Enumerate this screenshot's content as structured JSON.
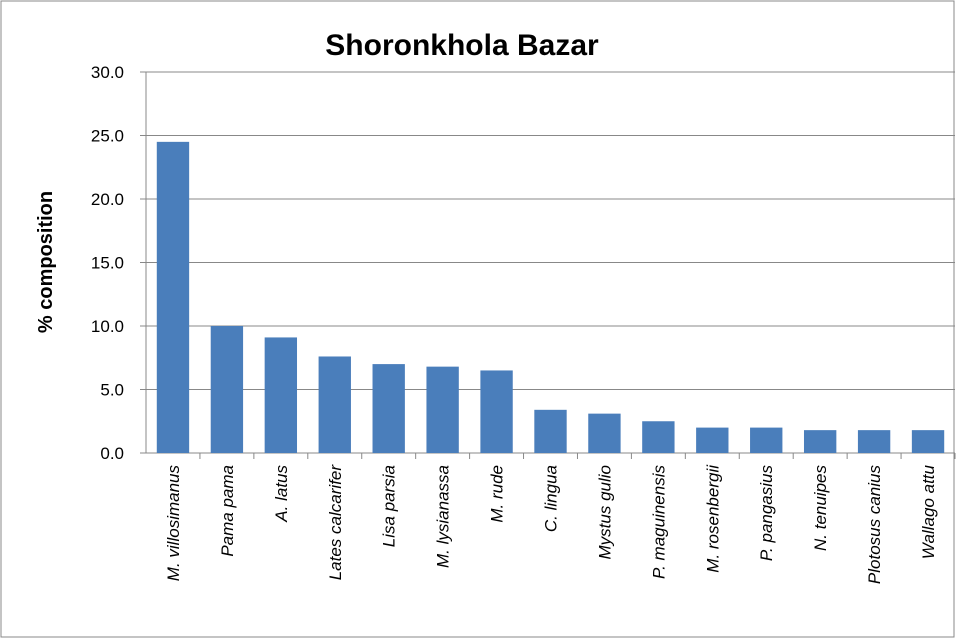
{
  "chart_data": {
    "type": "bar",
    "title": "Shoronkhola Bazar",
    "y_label": "% composition",
    "categories": [
      "M. villosimanus",
      "Pama pama",
      "A. latus",
      "Lates calcarifer",
      "Lisa parsia",
      "M. lysianassa",
      "M.  rude",
      "C. lingua",
      "Mystus gulio",
      "P. maguinensis",
      "M. rosenbergii",
      "P. pangasius",
      "N. tenuipes",
      "Plotosus canius",
      "Wallago attu"
    ],
    "values": [
      24.5,
      10.0,
      9.1,
      7.6,
      7.0,
      6.8,
      6.5,
      3.4,
      3.1,
      2.5,
      2.0,
      2.0,
      1.8,
      1.8,
      1.8
    ],
    "color": "#4a7ebb",
    "ylim": [
      0,
      30
    ],
    "yticks": [
      {
        "value": 0,
        "label": "0.0"
      },
      {
        "value": 5,
        "label": "5.0"
      },
      {
        "value": 10,
        "label": "10.0"
      },
      {
        "value": 15,
        "label": "15.0"
      },
      {
        "value": 20,
        "label": "20.0"
      },
      {
        "value": 25,
        "label": "25.0"
      },
      {
        "value": 30,
        "label": "30.0"
      }
    ],
    "grid": true
  }
}
